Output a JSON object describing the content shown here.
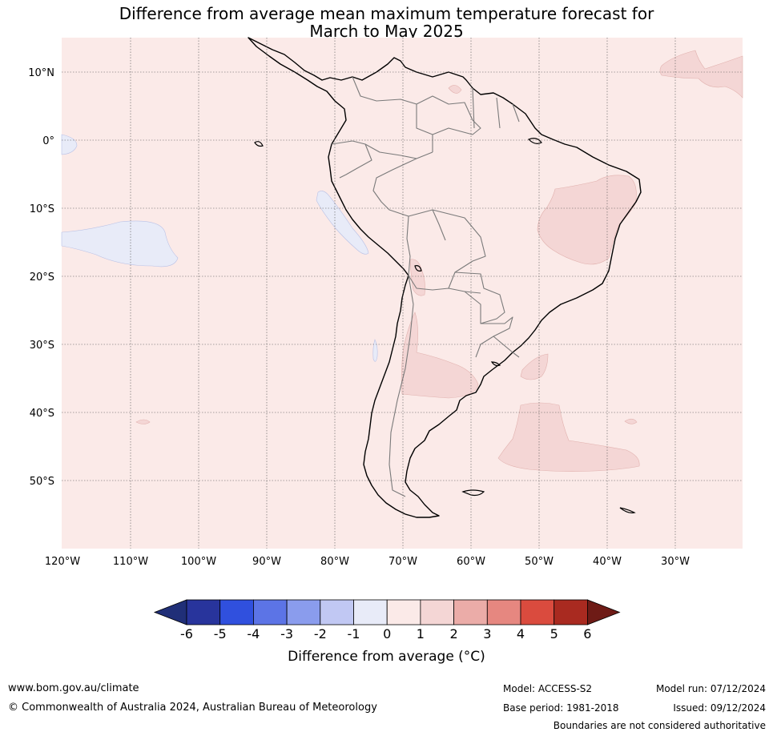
{
  "title_line1": "Difference from average mean maximum temperature forecast for",
  "title_line2": "March to May 2025",
  "lat_labels": [
    "10°N",
    "0°",
    "10°S",
    "20°S",
    "30°S",
    "40°S",
    "50°S"
  ],
  "lon_labels": [
    "120°W",
    "110°W",
    "100°W",
    "90°W",
    "80°W",
    "70°W",
    "60°W",
    "50°W",
    "40°W",
    "30°W"
  ],
  "colorbar": {
    "ticks": [
      "-6",
      "-5",
      "-4",
      "-3",
      "-2",
      "-1",
      "0",
      "1",
      "2",
      "3",
      "4",
      "5",
      "6"
    ],
    "colors": [
      "#28349c",
      "#3050de",
      "#5c74e6",
      "#8a9ced",
      "#c1c8f3",
      "#e8ebf8",
      "#fbeae8",
      "#f4d6d5",
      "#ebaca8",
      "#e68780",
      "#da4b3e",
      "#a92a20"
    ],
    "under_color": "#202f78",
    "over_color": "#6e1b16",
    "label": "Difference from average (°C)"
  },
  "footer": {
    "website": "www.bom.gov.au/climate",
    "copyright": "© Commonwealth of Australia 2024, Australian Bureau of Meteorology",
    "model": "Model: ACCESS-S2",
    "base_period": "Base period: 1981-2018",
    "model_run": "Model run: 07/12/2024",
    "issued": "Issued: 09/12/2024",
    "disclaimer": "Boundaries are not considered authoritative"
  }
}
